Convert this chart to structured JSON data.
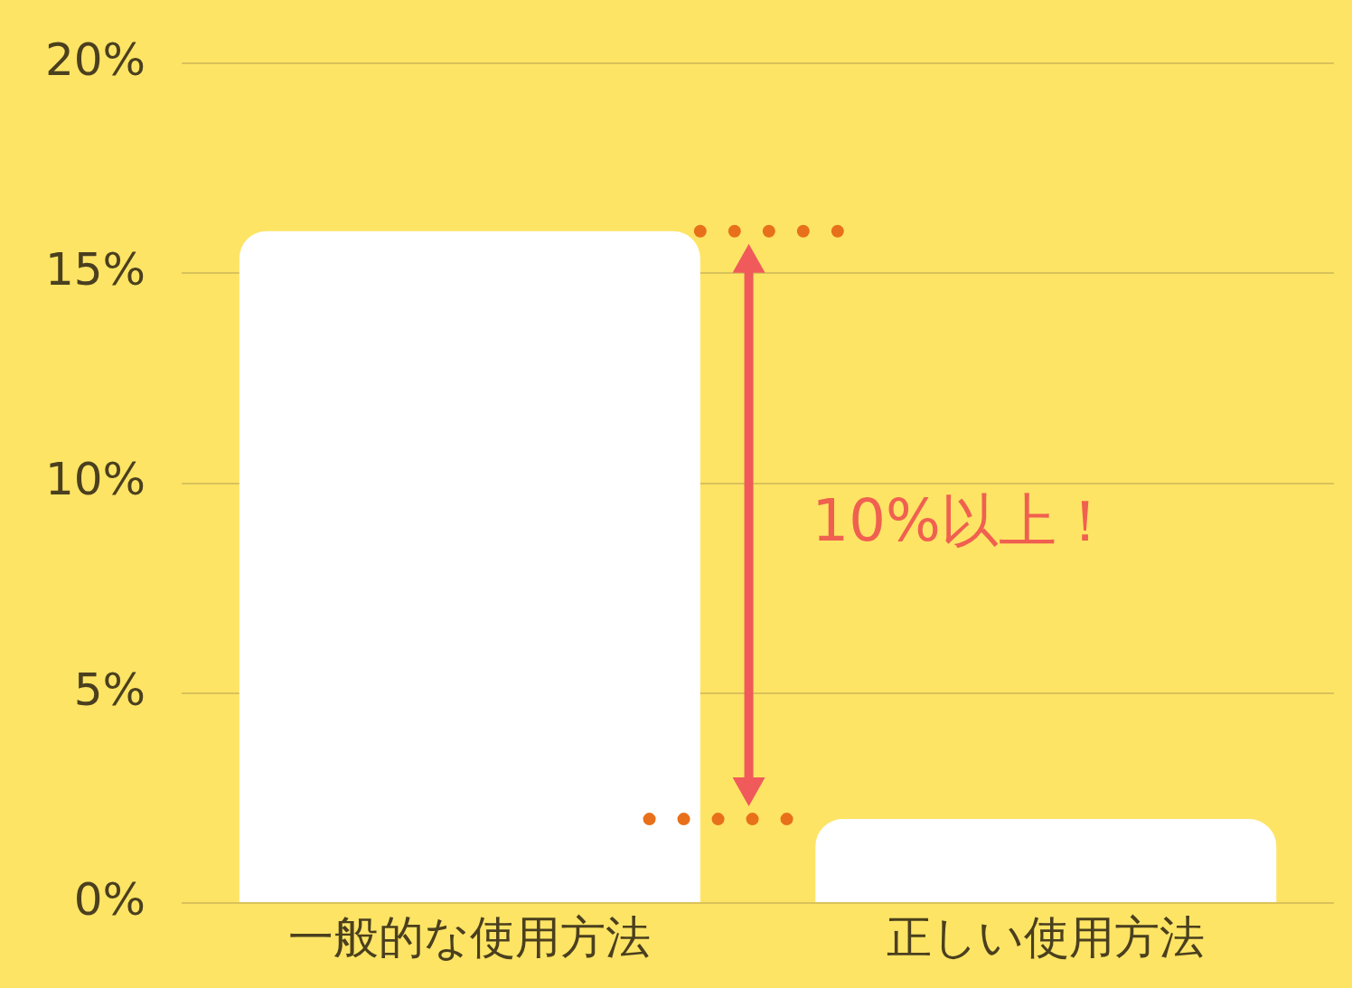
{
  "chart_data": {
    "type": "bar",
    "categories": [
      "一般的な使用方法",
      "正しい使用方法"
    ],
    "values": [
      16,
      2
    ],
    "color": "#ffffff",
    "ylim": [
      0,
      20
    ],
    "yticks": [
      {
        "value": 0,
        "label": "0%"
      },
      {
        "value": 5,
        "label": "5%"
      },
      {
        "value": 10,
        "label": "10%"
      },
      {
        "value": 15,
        "label": "15%"
      },
      {
        "value": 20,
        "label": "20%"
      }
    ],
    "grid": "y",
    "legend": false,
    "ref_lines": [
      {
        "axis": "y",
        "value": 16,
        "color": "#e8701a",
        "line_style": "dotted"
      },
      {
        "axis": "y",
        "value": 2,
        "color": "#e8701a",
        "line_style": "dotted"
      }
    ],
    "annotations": [
      "10%以上！"
    ]
  }
}
